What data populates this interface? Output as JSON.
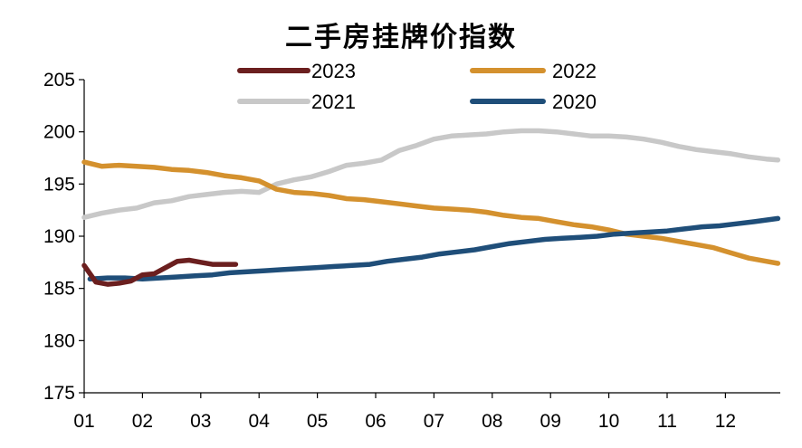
{
  "chart_data": {
    "type": "line",
    "title": "二手房挂牌价指数",
    "xlabel": "",
    "ylabel": "",
    "ylim": [
      175,
      205
    ],
    "yticks": [
      175,
      180,
      185,
      190,
      195,
      200,
      205
    ],
    "xticks": [
      "01",
      "02",
      "03",
      "04",
      "05",
      "06",
      "07",
      "08",
      "09",
      "10",
      "11",
      "12"
    ],
    "xlim": [
      1,
      12.9
    ],
    "grid": false,
    "legend_position": "top",
    "series": [
      {
        "name": "2023",
        "color": "#6b1f1f",
        "x": [
          1.0,
          1.2,
          1.4,
          1.6,
          1.8,
          2.0,
          2.2,
          2.4,
          2.6,
          2.8,
          3.0,
          3.2,
          3.4,
          3.6
        ],
        "values": [
          187.2,
          185.6,
          185.4,
          185.5,
          185.7,
          186.3,
          186.4,
          187.0,
          187.6,
          187.7,
          187.5,
          187.3,
          187.3,
          187.3
        ]
      },
      {
        "name": "2022",
        "color": "#d4912e",
        "x": [
          1.0,
          1.3,
          1.6,
          1.9,
          2.2,
          2.5,
          2.8,
          3.1,
          3.4,
          3.7,
          4.0,
          4.3,
          4.6,
          4.9,
          5.2,
          5.5,
          5.8,
          6.1,
          6.4,
          6.7,
          7.0,
          7.3,
          7.6,
          7.9,
          8.2,
          8.5,
          8.8,
          9.1,
          9.4,
          9.7,
          10.0,
          10.3,
          10.6,
          10.9,
          11.2,
          11.5,
          11.8,
          12.1,
          12.4,
          12.7,
          12.9
        ],
        "values": [
          197.1,
          196.7,
          196.8,
          196.7,
          196.6,
          196.4,
          196.3,
          196.1,
          195.8,
          195.6,
          195.3,
          194.5,
          194.2,
          194.1,
          193.9,
          193.6,
          193.5,
          193.3,
          193.1,
          192.9,
          192.7,
          192.6,
          192.5,
          192.3,
          192.0,
          191.8,
          191.7,
          191.4,
          191.1,
          190.9,
          190.6,
          190.2,
          190.0,
          189.8,
          189.5,
          189.2,
          188.9,
          188.4,
          187.9,
          187.6,
          187.4
        ]
      },
      {
        "name": "2021",
        "color": "#c8c8c8",
        "x": [
          1.0,
          1.3,
          1.6,
          1.9,
          2.2,
          2.5,
          2.8,
          3.1,
          3.4,
          3.7,
          4.0,
          4.3,
          4.6,
          4.9,
          5.2,
          5.5,
          5.8,
          6.1,
          6.4,
          6.7,
          7.0,
          7.3,
          7.6,
          7.9,
          8.2,
          8.5,
          8.8,
          9.1,
          9.4,
          9.7,
          10.0,
          10.3,
          10.6,
          10.9,
          11.2,
          11.5,
          11.8,
          12.1,
          12.4,
          12.7,
          12.9
        ],
        "values": [
          191.8,
          192.2,
          192.5,
          192.7,
          193.2,
          193.4,
          193.8,
          194.0,
          194.2,
          194.3,
          194.2,
          195.0,
          195.4,
          195.7,
          196.2,
          196.8,
          197.0,
          197.3,
          198.2,
          198.7,
          199.3,
          199.6,
          199.7,
          199.8,
          200.0,
          200.1,
          200.1,
          200.0,
          199.8,
          199.6,
          199.6,
          199.5,
          199.3,
          199.0,
          198.6,
          198.3,
          198.1,
          197.9,
          197.6,
          197.4,
          197.3
        ]
      },
      {
        "name": "2020",
        "color": "#1f4e79",
        "x": [
          1.1,
          1.4,
          1.7,
          2.0,
          2.3,
          2.6,
          2.9,
          3.2,
          3.5,
          3.8,
          4.1,
          4.4,
          4.7,
          5.0,
          5.3,
          5.6,
          5.9,
          6.2,
          6.5,
          6.8,
          7.1,
          7.4,
          7.7,
          8.0,
          8.3,
          8.6,
          8.9,
          9.2,
          9.5,
          9.8,
          10.1,
          10.4,
          10.7,
          11.0,
          11.3,
          11.6,
          11.9,
          12.2,
          12.5,
          12.9
        ],
        "values": [
          185.9,
          186.0,
          186.0,
          185.9,
          186.0,
          186.1,
          186.2,
          186.3,
          186.5,
          186.6,
          186.7,
          186.8,
          186.9,
          187.0,
          187.1,
          187.2,
          187.3,
          187.6,
          187.8,
          188.0,
          188.3,
          188.5,
          188.7,
          189.0,
          189.3,
          189.5,
          189.7,
          189.8,
          189.9,
          190.0,
          190.2,
          190.3,
          190.4,
          190.5,
          190.7,
          190.9,
          191.0,
          191.2,
          191.4,
          191.7
        ]
      }
    ]
  }
}
